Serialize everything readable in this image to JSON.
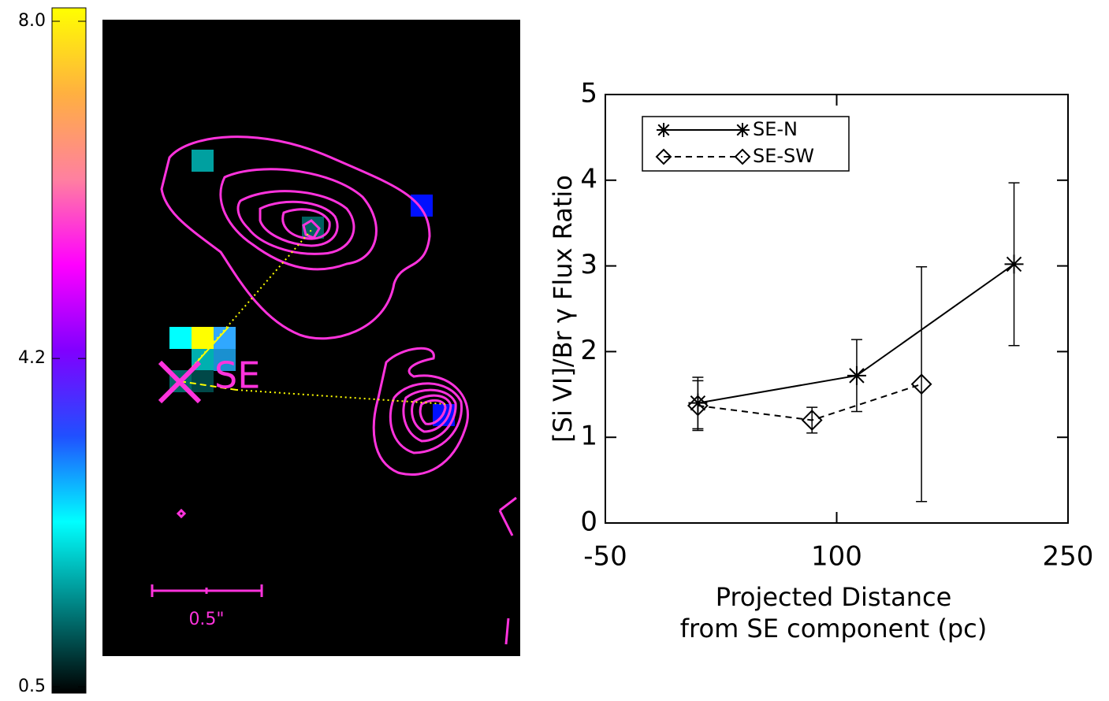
{
  "chart_data": [
    {
      "type": "colorbar",
      "ylim": [
        0.5,
        8
      ],
      "yticks": [
        {
          "value": 8,
          "label": "8.0"
        },
        4.2,
        0.5
      ],
      "colors": [
        "#000000",
        "#008080",
        "#00ffff",
        "#2050ff",
        "#8000ff",
        "#ff00ff",
        "#ff80a0",
        "#ffb040",
        "#ffff00"
      ]
    },
    {
      "type": "image",
      "annotations": [
        "SE",
        "0.5\""
      ],
      "color": "#ff33dd"
    },
    {
      "type": "line",
      "xlabel": [
        "Projected Distance",
        "from SE component (pc)"
      ],
      "ylabel": "[Si VI]/Br γ Flux Ratio",
      "xlim": [
        -50,
        250
      ],
      "xticks": [
        -50,
        100,
        250
      ],
      "ylim": [
        0,
        5
      ],
      "yticks": [
        0,
        1,
        2,
        3,
        4,
        5
      ],
      "legend": "upper left",
      "series": [
        {
          "name": "SE-N",
          "color": "#000000",
          "marker": "asterisk",
          "linestyle": "solid",
          "x": [
            10,
            113,
            215
          ],
          "values": [
            1.4,
            1.72,
            3.02
          ],
          "errors": [
            0.3,
            0.42,
            0.95
          ]
        },
        {
          "name": "SE-SW",
          "color": "#000000",
          "marker": "diamond",
          "linestyle": "dashed",
          "x": [
            10,
            84,
            155
          ],
          "values": [
            1.37,
            1.2,
            1.62
          ],
          "errors": [
            0.29,
            0.15,
            1.37
          ]
        }
      ]
    }
  ]
}
